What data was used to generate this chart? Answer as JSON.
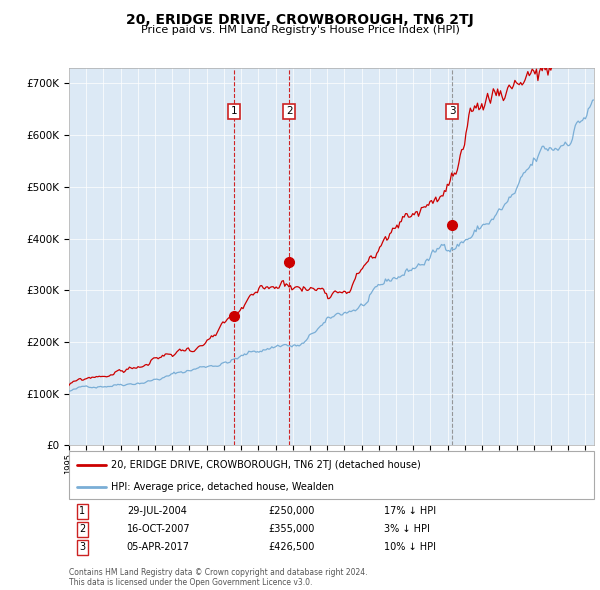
{
  "title": "20, ERIDGE DRIVE, CROWBOROUGH, TN6 2TJ",
  "subtitle": "Price paid vs. HM Land Registry's House Price Index (HPI)",
  "hpi_label": "HPI: Average price, detached house, Wealden",
  "property_label": "20, ERIDGE DRIVE, CROWBOROUGH, TN6 2TJ (detached house)",
  "transactions": [
    {
      "num": 1,
      "date": "29-JUL-2004",
      "price": 250000,
      "hpi_diff": "17% ↓ HPI",
      "date_x": 2004.57
    },
    {
      "num": 2,
      "date": "16-OCT-2007",
      "price": 355000,
      "hpi_diff": "3% ↓ HPI",
      "date_x": 2007.79
    },
    {
      "num": 3,
      "date": "05-APR-2017",
      "price": 426500,
      "hpi_diff": "10% ↓ HPI",
      "date_x": 2017.26
    }
  ],
  "ylim": [
    0,
    730000
  ],
  "xlim_start": 1995.0,
  "xlim_end": 2025.5,
  "plot_bg": "#dce9f5",
  "hpi_color": "#7aaed6",
  "price_color": "#cc0000",
  "vline_color_red": "#cc0000",
  "vline_color_gray": "#888888",
  "footer": "Contains HM Land Registry data © Crown copyright and database right 2024.\nThis data is licensed under the Open Government Licence v3.0.",
  "yticks": [
    0,
    100000,
    200000,
    300000,
    400000,
    500000,
    600000,
    700000
  ],
  "ylabels": [
    "£0",
    "£100K",
    "£200K",
    "£300K",
    "£400K",
    "£500K",
    "£600K",
    "£700K"
  ]
}
